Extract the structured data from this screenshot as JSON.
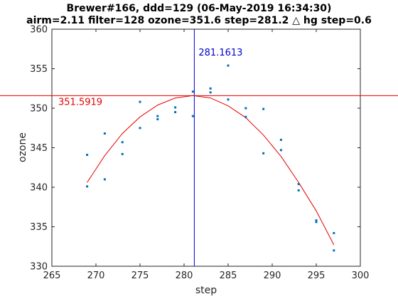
{
  "chart_data": {
    "type": "scatter",
    "title_line1": "Brewer#166, ddd=129 (06-May-2019 16:34:30)",
    "title_line2": "airm=2.11  filter=128 ozone=351.6  step=281.2 △ hg step=0.6",
    "xlabel": "step",
    "ylabel": "ozone",
    "xlim": [
      265,
      300
    ],
    "ylim": [
      330,
      360
    ],
    "xticks": [
      265,
      270,
      275,
      280,
      285,
      290,
      295,
      300
    ],
    "yticks": [
      330,
      335,
      340,
      345,
      350,
      355,
      360
    ],
    "grid": false,
    "points": [
      {
        "x": 269,
        "y": 344.1
      },
      {
        "x": 269,
        "y": 340.1
      },
      {
        "x": 271,
        "y": 346.8
      },
      {
        "x": 271,
        "y": 341.0
      },
      {
        "x": 273,
        "y": 345.7
      },
      {
        "x": 273,
        "y": 344.2
      },
      {
        "x": 275,
        "y": 350.8
      },
      {
        "x": 275,
        "y": 347.5
      },
      {
        "x": 277,
        "y": 349.0
      },
      {
        "x": 277,
        "y": 348.6
      },
      {
        "x": 279,
        "y": 350.1
      },
      {
        "x": 279,
        "y": 349.5
      },
      {
        "x": 281,
        "y": 352.1
      },
      {
        "x": 281,
        "y": 349.0
      },
      {
        "x": 283,
        "y": 352.5
      },
      {
        "x": 283,
        "y": 352.0
      },
      {
        "x": 285,
        "y": 355.4
      },
      {
        "x": 285,
        "y": 351.1
      },
      {
        "x": 287,
        "y": 350.0
      },
      {
        "x": 287,
        "y": 348.9
      },
      {
        "x": 289,
        "y": 349.9
      },
      {
        "x": 289,
        "y": 344.3
      },
      {
        "x": 291,
        "y": 346.0
      },
      {
        "x": 291,
        "y": 344.7
      },
      {
        "x": 293,
        "y": 340.4
      },
      {
        "x": 293,
        "y": 339.6
      },
      {
        "x": 295,
        "y": 335.8
      },
      {
        "x": 295,
        "y": 335.6
      },
      {
        "x": 297,
        "y": 334.2
      },
      {
        "x": 297,
        "y": 332.0
      }
    ],
    "fit": {
      "x": [
        269,
        271,
        273,
        275,
        277,
        279,
        281,
        283,
        285,
        287,
        289,
        291,
        293,
        295,
        297
      ],
      "y": [
        340.6,
        344.0,
        346.8,
        348.9,
        350.4,
        351.3,
        351.6,
        351.3,
        350.3,
        348.8,
        346.6,
        343.9,
        340.6,
        337.0,
        332.7
      ]
    },
    "vline": {
      "x": 281.1613,
      "label": "281.1613",
      "color": "#0000cc"
    },
    "hline": {
      "y": 351.5919,
      "label": "351.5919",
      "color": "#e60000"
    },
    "colors": {
      "points": "#0072bd",
      "fit": "#e60000",
      "axes": "#262626"
    }
  }
}
